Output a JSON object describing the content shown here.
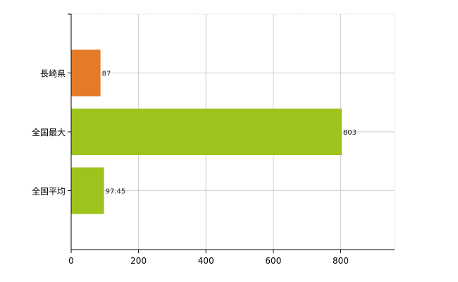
{
  "chart_data": {
    "type": "bar",
    "orientation": "horizontal",
    "categories": [
      "長崎県",
      "全国最大",
      "全国平均"
    ],
    "values": [
      87,
      803,
      97.45
    ],
    "value_labels": [
      "87",
      "803",
      "97.45"
    ],
    "colors": [
      "#e57a27",
      "#9dc41c",
      "#9dc41c"
    ],
    "xlim": [
      0,
      960
    ],
    "xticks": [
      0,
      200,
      400,
      600,
      800
    ],
    "xtick_labels": [
      "0",
      "200",
      "400",
      "600",
      "800"
    ],
    "grid": true,
    "legend": "none",
    "title": "",
    "xlabel": "",
    "ylabel": ""
  }
}
